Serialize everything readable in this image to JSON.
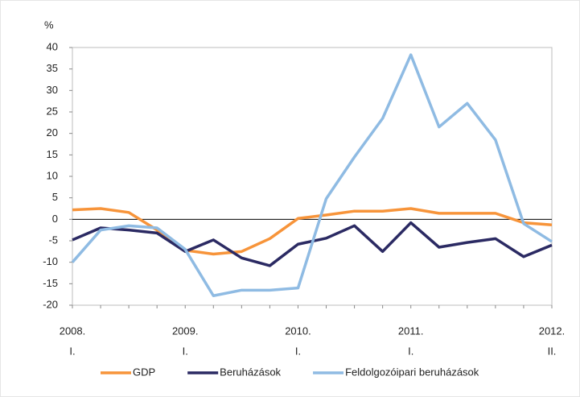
{
  "chart_data": {
    "type": "line",
    "y_label": "%",
    "categories": [
      [
        "2008.",
        "I."
      ],
      null,
      null,
      null,
      [
        "2009.",
        "I."
      ],
      null,
      null,
      null,
      [
        "2010.",
        "I."
      ],
      null,
      null,
      null,
      [
        "2011.",
        "I."
      ],
      null,
      null,
      null,
      null,
      [
        "2012.",
        "II."
      ]
    ],
    "series": [
      {
        "name": "GDP",
        "color": "#f7943a",
        "values": [
          2.2,
          2.5,
          1.6,
          -2.5,
          -7.2,
          -8.1,
          -7.5,
          -4.5,
          0.2,
          1.0,
          1.9,
          1.9,
          2.5,
          1.4,
          1.4,
          1.4,
          -0.8,
          -1.3
        ]
      },
      {
        "name": "Beruházások",
        "color": "#2b2a63",
        "values": [
          -4.8,
          -2.0,
          -2.5,
          -3.2,
          -7.5,
          -4.8,
          -9.0,
          -10.8,
          -5.8,
          -4.4,
          -1.5,
          -7.5,
          -0.8,
          -6.5,
          -5.4,
          -4.5,
          -8.7,
          -6.0
        ]
      },
      {
        "name": "Feldolgozóipari beruházások",
        "color": "#8fbbe3",
        "values": [
          -10,
          -2.5,
          -1.5,
          -2.0,
          -7.0,
          -17.8,
          -16.5,
          -16.5,
          -16.0,
          4.8,
          14.5,
          23.5,
          38.3,
          21.5,
          27.0,
          18.5,
          -1.0,
          -5.2
        ]
      }
    ],
    "ylim": [
      -20,
      40
    ],
    "yticks": [
      -20,
      -15,
      -10,
      -5,
      0,
      5,
      10,
      15,
      20,
      25,
      30,
      35,
      40
    ],
    "grid": false,
    "legend": "bottom"
  }
}
